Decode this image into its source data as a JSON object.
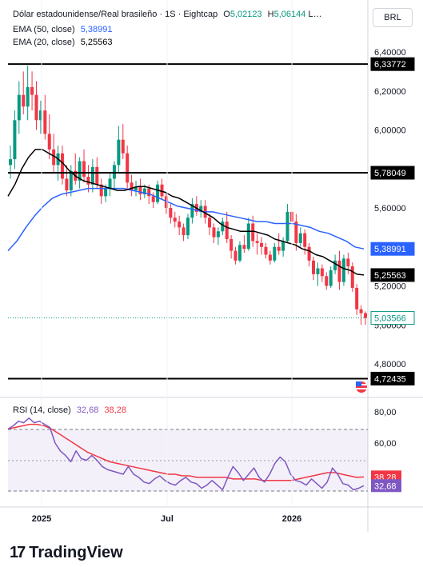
{
  "header": {
    "symbol": "Dólar estadounidense/Real brasileño · 1S · Eightcap",
    "open_label": "O",
    "open_value": "5,02123",
    "high_label": "H",
    "high_value": "5,06144",
    "more": "L…",
    "ema50_label": "EMA (50, close)",
    "ema50_value": "5,38991",
    "ema20_label": "EMA (20, close)",
    "ema20_value": "5,25563",
    "currency": "BRL"
  },
  "rsi": {
    "label": "RSI (14, close)",
    "value": "32,68",
    "ma_value": "38,28"
  },
  "brand": "TradingView",
  "colors": {
    "up": "#089981",
    "down": "#f23645",
    "ema50": "#2962ff",
    "ema20": "#000000",
    "rsi": "#7e57c2",
    "rsi_ma": "#f23645",
    "hline": "#000000"
  },
  "chart_data": [
    {
      "type": "candlestick",
      "title": "Dólar estadounidense/Real brasileño · 1S · Eightcap",
      "y_ticks": [
        "6,40000",
        "6,20000",
        "6,00000",
        "5,80000",
        "5,60000",
        "5,40000",
        "5,20000",
        "5,00000",
        "4,80000"
      ],
      "x_ticks": [
        "2025",
        "Jul",
        "2026"
      ],
      "ylim": [
        4.72,
        6.4
      ],
      "horizontal_lines": [
        {
          "value": 6.33772,
          "label": "6,33772"
        },
        {
          "value": 5.78049,
          "label": "5,78049"
        },
        {
          "value": 4.72435,
          "label": "4,72435"
        }
      ],
      "price_tags": [
        {
          "name": "EMA (50, close)",
          "value": 5.38991,
          "label": "5,38991"
        },
        {
          "name": "EMA (20, close)",
          "value": 5.25563,
          "label": "5,25563"
        },
        {
          "name": "last",
          "value": 5.03566,
          "label": "5,03566"
        }
      ],
      "candles": [
        [
          5.82,
          5.92,
          5.75,
          5.85
        ],
        [
          5.85,
          6.1,
          5.8,
          6.05
        ],
        [
          6.05,
          6.25,
          5.98,
          6.18
        ],
        [
          6.18,
          6.3,
          6.08,
          6.12
        ],
        [
          6.12,
          6.33,
          6.05,
          6.22
        ],
        [
          6.22,
          6.3,
          6.1,
          6.18
        ],
        [
          6.18,
          6.25,
          6.0,
          6.05
        ],
        [
          6.05,
          6.15,
          5.98,
          6.1
        ],
        [
          6.1,
          6.18,
          5.95,
          5.98
        ],
        [
          5.98,
          6.08,
          5.85,
          5.9
        ],
        [
          5.9,
          5.98,
          5.78,
          5.82
        ],
        [
          5.82,
          5.92,
          5.74,
          5.88
        ],
        [
          5.88,
          5.92,
          5.72,
          5.75
        ],
        [
          5.75,
          5.82,
          5.66,
          5.69
        ],
        [
          5.69,
          5.82,
          5.66,
          5.79
        ],
        [
          5.79,
          5.88,
          5.72,
          5.74
        ],
        [
          5.74,
          5.86,
          5.7,
          5.84
        ],
        [
          5.84,
          5.9,
          5.73,
          5.76
        ],
        [
          5.76,
          5.82,
          5.68,
          5.72
        ],
        [
          5.72,
          5.85,
          5.68,
          5.81
        ],
        [
          5.81,
          5.86,
          5.7,
          5.72
        ],
        [
          5.72,
          5.75,
          5.62,
          5.66
        ],
        [
          5.66,
          5.72,
          5.63,
          5.7
        ],
        [
          5.7,
          5.78,
          5.66,
          5.75
        ],
        [
          5.75,
          5.84,
          5.7,
          5.82
        ],
        [
          5.82,
          6.02,
          5.78,
          5.95
        ],
        [
          5.95,
          6.03,
          5.85,
          5.88
        ],
        [
          5.88,
          5.92,
          5.7,
          5.73
        ],
        [
          5.73,
          5.77,
          5.66,
          5.69
        ],
        [
          5.69,
          5.74,
          5.66,
          5.71
        ],
        [
          5.71,
          5.75,
          5.64,
          5.67
        ],
        [
          5.67,
          5.72,
          5.65,
          5.7
        ],
        [
          5.7,
          5.72,
          5.62,
          5.66
        ],
        [
          5.66,
          5.68,
          5.6,
          5.63
        ],
        [
          5.63,
          5.74,
          5.62,
          5.72
        ],
        [
          5.72,
          5.75,
          5.64,
          5.66
        ],
        [
          5.66,
          5.68,
          5.57,
          5.6
        ],
        [
          5.6,
          5.62,
          5.52,
          5.55
        ],
        [
          5.55,
          5.58,
          5.5,
          5.53
        ],
        [
          5.53,
          5.56,
          5.46,
          5.5
        ],
        [
          5.5,
          5.52,
          5.43,
          5.46
        ],
        [
          5.46,
          5.57,
          5.44,
          5.55
        ],
        [
          5.55,
          5.65,
          5.52,
          5.62
        ],
        [
          5.62,
          5.66,
          5.56,
          5.58
        ],
        [
          5.58,
          5.64,
          5.55,
          5.61
        ],
        [
          5.61,
          5.64,
          5.52,
          5.55
        ],
        [
          5.55,
          5.57,
          5.46,
          5.5
        ],
        [
          5.5,
          5.52,
          5.42,
          5.45
        ],
        [
          5.45,
          5.5,
          5.41,
          5.48
        ],
        [
          5.48,
          5.55,
          5.46,
          5.53
        ],
        [
          5.53,
          5.58,
          5.42,
          5.44
        ],
        [
          5.44,
          5.46,
          5.34,
          5.38
        ],
        [
          5.38,
          5.4,
          5.31,
          5.33
        ],
        [
          5.33,
          5.43,
          5.32,
          5.41
        ],
        [
          5.41,
          5.46,
          5.37,
          5.39
        ],
        [
          5.39,
          5.55,
          5.38,
          5.52
        ],
        [
          5.52,
          5.56,
          5.4,
          5.43
        ],
        [
          5.43,
          5.47,
          5.36,
          5.42
        ],
        [
          5.42,
          5.45,
          5.36,
          5.4
        ],
        [
          5.4,
          5.42,
          5.34,
          5.36
        ],
        [
          5.36,
          5.38,
          5.31,
          5.33
        ],
        [
          5.33,
          5.42,
          5.32,
          5.4
        ],
        [
          5.4,
          5.47,
          5.36,
          5.38
        ],
        [
          5.38,
          5.45,
          5.35,
          5.43
        ],
        [
          5.43,
          5.62,
          5.42,
          5.58
        ],
        [
          5.58,
          5.64,
          5.5,
          5.53
        ],
        [
          5.53,
          5.57,
          5.38,
          5.42
        ],
        [
          5.42,
          5.5,
          5.4,
          5.47
        ],
        [
          5.47,
          5.49,
          5.36,
          5.4
        ],
        [
          5.4,
          5.42,
          5.3,
          5.33
        ],
        [
          5.33,
          5.35,
          5.23,
          5.26
        ],
        [
          5.26,
          5.32,
          5.2,
          5.29
        ],
        [
          5.29,
          5.31,
          5.22,
          5.25
        ],
        [
          5.25,
          5.27,
          5.18,
          5.2
        ],
        [
          5.2,
          5.3,
          5.19,
          5.28
        ],
        [
          5.28,
          5.36,
          5.26,
          5.33
        ],
        [
          5.33,
          5.38,
          5.18,
          5.22
        ],
        [
          5.22,
          5.36,
          5.2,
          5.34
        ],
        [
          5.34,
          5.37,
          5.26,
          5.3
        ],
        [
          5.3,
          5.32,
          5.17,
          5.19
        ],
        [
          5.19,
          5.21,
          5.05,
          5.08
        ],
        [
          5.08,
          5.1,
          5.0,
          5.06
        ],
        [
          5.06,
          5.07,
          5.0,
          5.03566
        ]
      ],
      "ema20": [
        5.66,
        5.72,
        5.8,
        5.86,
        5.9,
        5.9,
        5.88,
        5.86,
        5.83,
        5.79,
        5.76,
        5.74,
        5.73,
        5.72,
        5.71,
        5.7,
        5.69,
        5.69,
        5.7,
        5.71,
        5.71,
        5.7,
        5.69,
        5.68,
        5.66,
        5.65,
        5.63,
        5.61,
        5.59,
        5.57,
        5.55,
        5.52,
        5.5,
        5.49,
        5.48,
        5.48,
        5.48,
        5.47,
        5.46,
        5.44,
        5.43,
        5.42,
        5.41,
        5.39,
        5.38,
        5.36,
        5.35,
        5.33,
        5.31,
        5.29,
        5.28,
        5.26,
        5.25563
      ],
      "ema50": [
        5.38,
        5.43,
        5.5,
        5.56,
        5.61,
        5.65,
        5.67,
        5.68,
        5.69,
        5.7,
        5.7,
        5.7,
        5.7,
        5.7,
        5.69,
        5.68,
        5.67,
        5.65,
        5.63,
        5.61,
        5.6,
        5.59,
        5.58,
        5.58,
        5.57,
        5.56,
        5.55,
        5.54,
        5.53,
        5.53,
        5.52,
        5.52,
        5.52,
        5.51,
        5.5,
        5.48,
        5.47,
        5.45,
        5.43,
        5.4,
        5.38991
      ]
    },
    {
      "type": "line",
      "title": "RSI (14, close)",
      "y_ticks": [
        "80,00",
        "60,00"
      ],
      "ylim": [
        20,
        85
      ],
      "series": [
        {
          "name": "RSI (14, close)",
          "values": [
            69,
            71,
            74,
            73,
            76,
            73,
            74,
            72,
            70,
            60,
            55,
            52,
            48,
            55,
            50,
            49,
            52,
            49,
            45,
            43,
            42,
            41,
            40,
            45,
            40,
            38,
            35,
            34,
            37,
            39,
            36,
            34,
            33,
            36,
            38,
            35,
            34,
            31,
            33,
            36,
            33,
            30,
            38,
            45,
            41,
            36,
            40,
            44,
            38,
            35,
            40,
            47,
            51,
            48,
            40,
            36,
            35,
            33,
            37,
            34,
            31,
            35,
            44,
            40,
            34,
            33,
            30,
            31,
            32.68
          ]
        },
        {
          "name": "RSI MA",
          "values": [
            69,
            70,
            71,
            72,
            72,
            71,
            69,
            66,
            63,
            60,
            57,
            54,
            52,
            50,
            48,
            47,
            46,
            45,
            44,
            43,
            42,
            41,
            40,
            40,
            39,
            39,
            38,
            38,
            38,
            38,
            38,
            37,
            37,
            37,
            37,
            36,
            36,
            36,
            36,
            36,
            37,
            38,
            39,
            40,
            41,
            41,
            40,
            39,
            38,
            38.28
          ]
        }
      ]
    }
  ]
}
